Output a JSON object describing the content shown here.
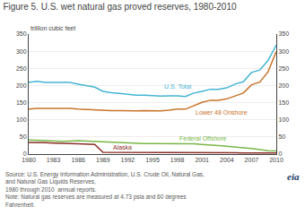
{
  "chart_data": {
    "type": "line",
    "title": "Figure 5. U.S. wet natural gas proved reserves, 1980-2010",
    "y_label": "trillion cubic feet",
    "annotations": [
      "Source: U.S. Energy Information Administration, U.S. Crude Oil, Natural Gas, and Natural Gas Liquids Reserves,\n1980 through 2010  annual reports.\nNote: Natural gas reserves are measured at 4.73 psia and 60 degrees Fahrenheit.",
      "eia"
    ],
    "x": [
      1980,
      1981,
      1982,
      1983,
      1984,
      1985,
      1986,
      1987,
      1988,
      1989,
      1990,
      1991,
      1992,
      1993,
      1994,
      1995,
      1996,
      1997,
      1998,
      1999,
      2000,
      2001,
      2002,
      2003,
      2004,
      2005,
      2006,
      2007,
      2008,
      2009,
      2010
    ],
    "series": [
      {
        "name": "U.S. Total",
        "color": "#45b4d4",
        "values": [
          209,
          212,
          209,
          209,
          209,
          209,
          204,
          200,
          195,
          183,
          179,
          177,
          175,
          172,
          172,
          170,
          169,
          170,
          170,
          168,
          178,
          183,
          189,
          189,
          193,
          204,
          211,
          238,
          245,
          273,
          318
        ]
      },
      {
        "name": "Lower 48 Onshore",
        "color": "#c8732a",
        "values": [
          131,
          133,
          133,
          133,
          132,
          133,
          131,
          130,
          128,
          127,
          127,
          127,
          126,
          126,
          127,
          126,
          126,
          128,
          131,
          131,
          141,
          151,
          157,
          157,
          161,
          170,
          178,
          202,
          210,
          240,
          299
        ]
      },
      {
        "name": "Federal Offshore",
        "color": "#7ab648",
        "values": [
          41,
          40,
          39,
          37,
          37,
          38,
          39,
          38,
          37,
          36,
          34,
          33,
          32,
          31,
          31,
          31,
          31,
          31,
          30,
          30,
          30,
          28,
          27,
          25,
          23,
          20,
          18,
          16,
          13,
          10,
          9
        ]
      },
      {
        "name": "Alaska",
        "color": "#8b3028",
        "values": [
          34,
          34,
          33,
          32,
          32,
          31,
          30,
          29,
          28,
          5,
          5,
          5,
          5,
          5,
          4,
          4,
          4,
          4,
          4,
          4,
          4,
          4,
          4,
          4,
          4,
          4,
          3,
          3,
          3,
          3,
          3
        ]
      }
    ],
    "xlim": [
      1980,
      2010
    ],
    "xticks": [
      1980,
      1983,
      1986,
      1989,
      1992,
      1995,
      1998,
      2001,
      2004,
      2007,
      2010
    ],
    "ylim": [
      0,
      350
    ],
    "yticks": [
      0,
      50,
      100,
      150,
      200,
      250,
      300,
      350
    ],
    "y2lim": [
      0,
      350
    ],
    "y2ticks": [
      0,
      50,
      100,
      150,
      200,
      250,
      300,
      350
    ],
    "grid": true
  }
}
